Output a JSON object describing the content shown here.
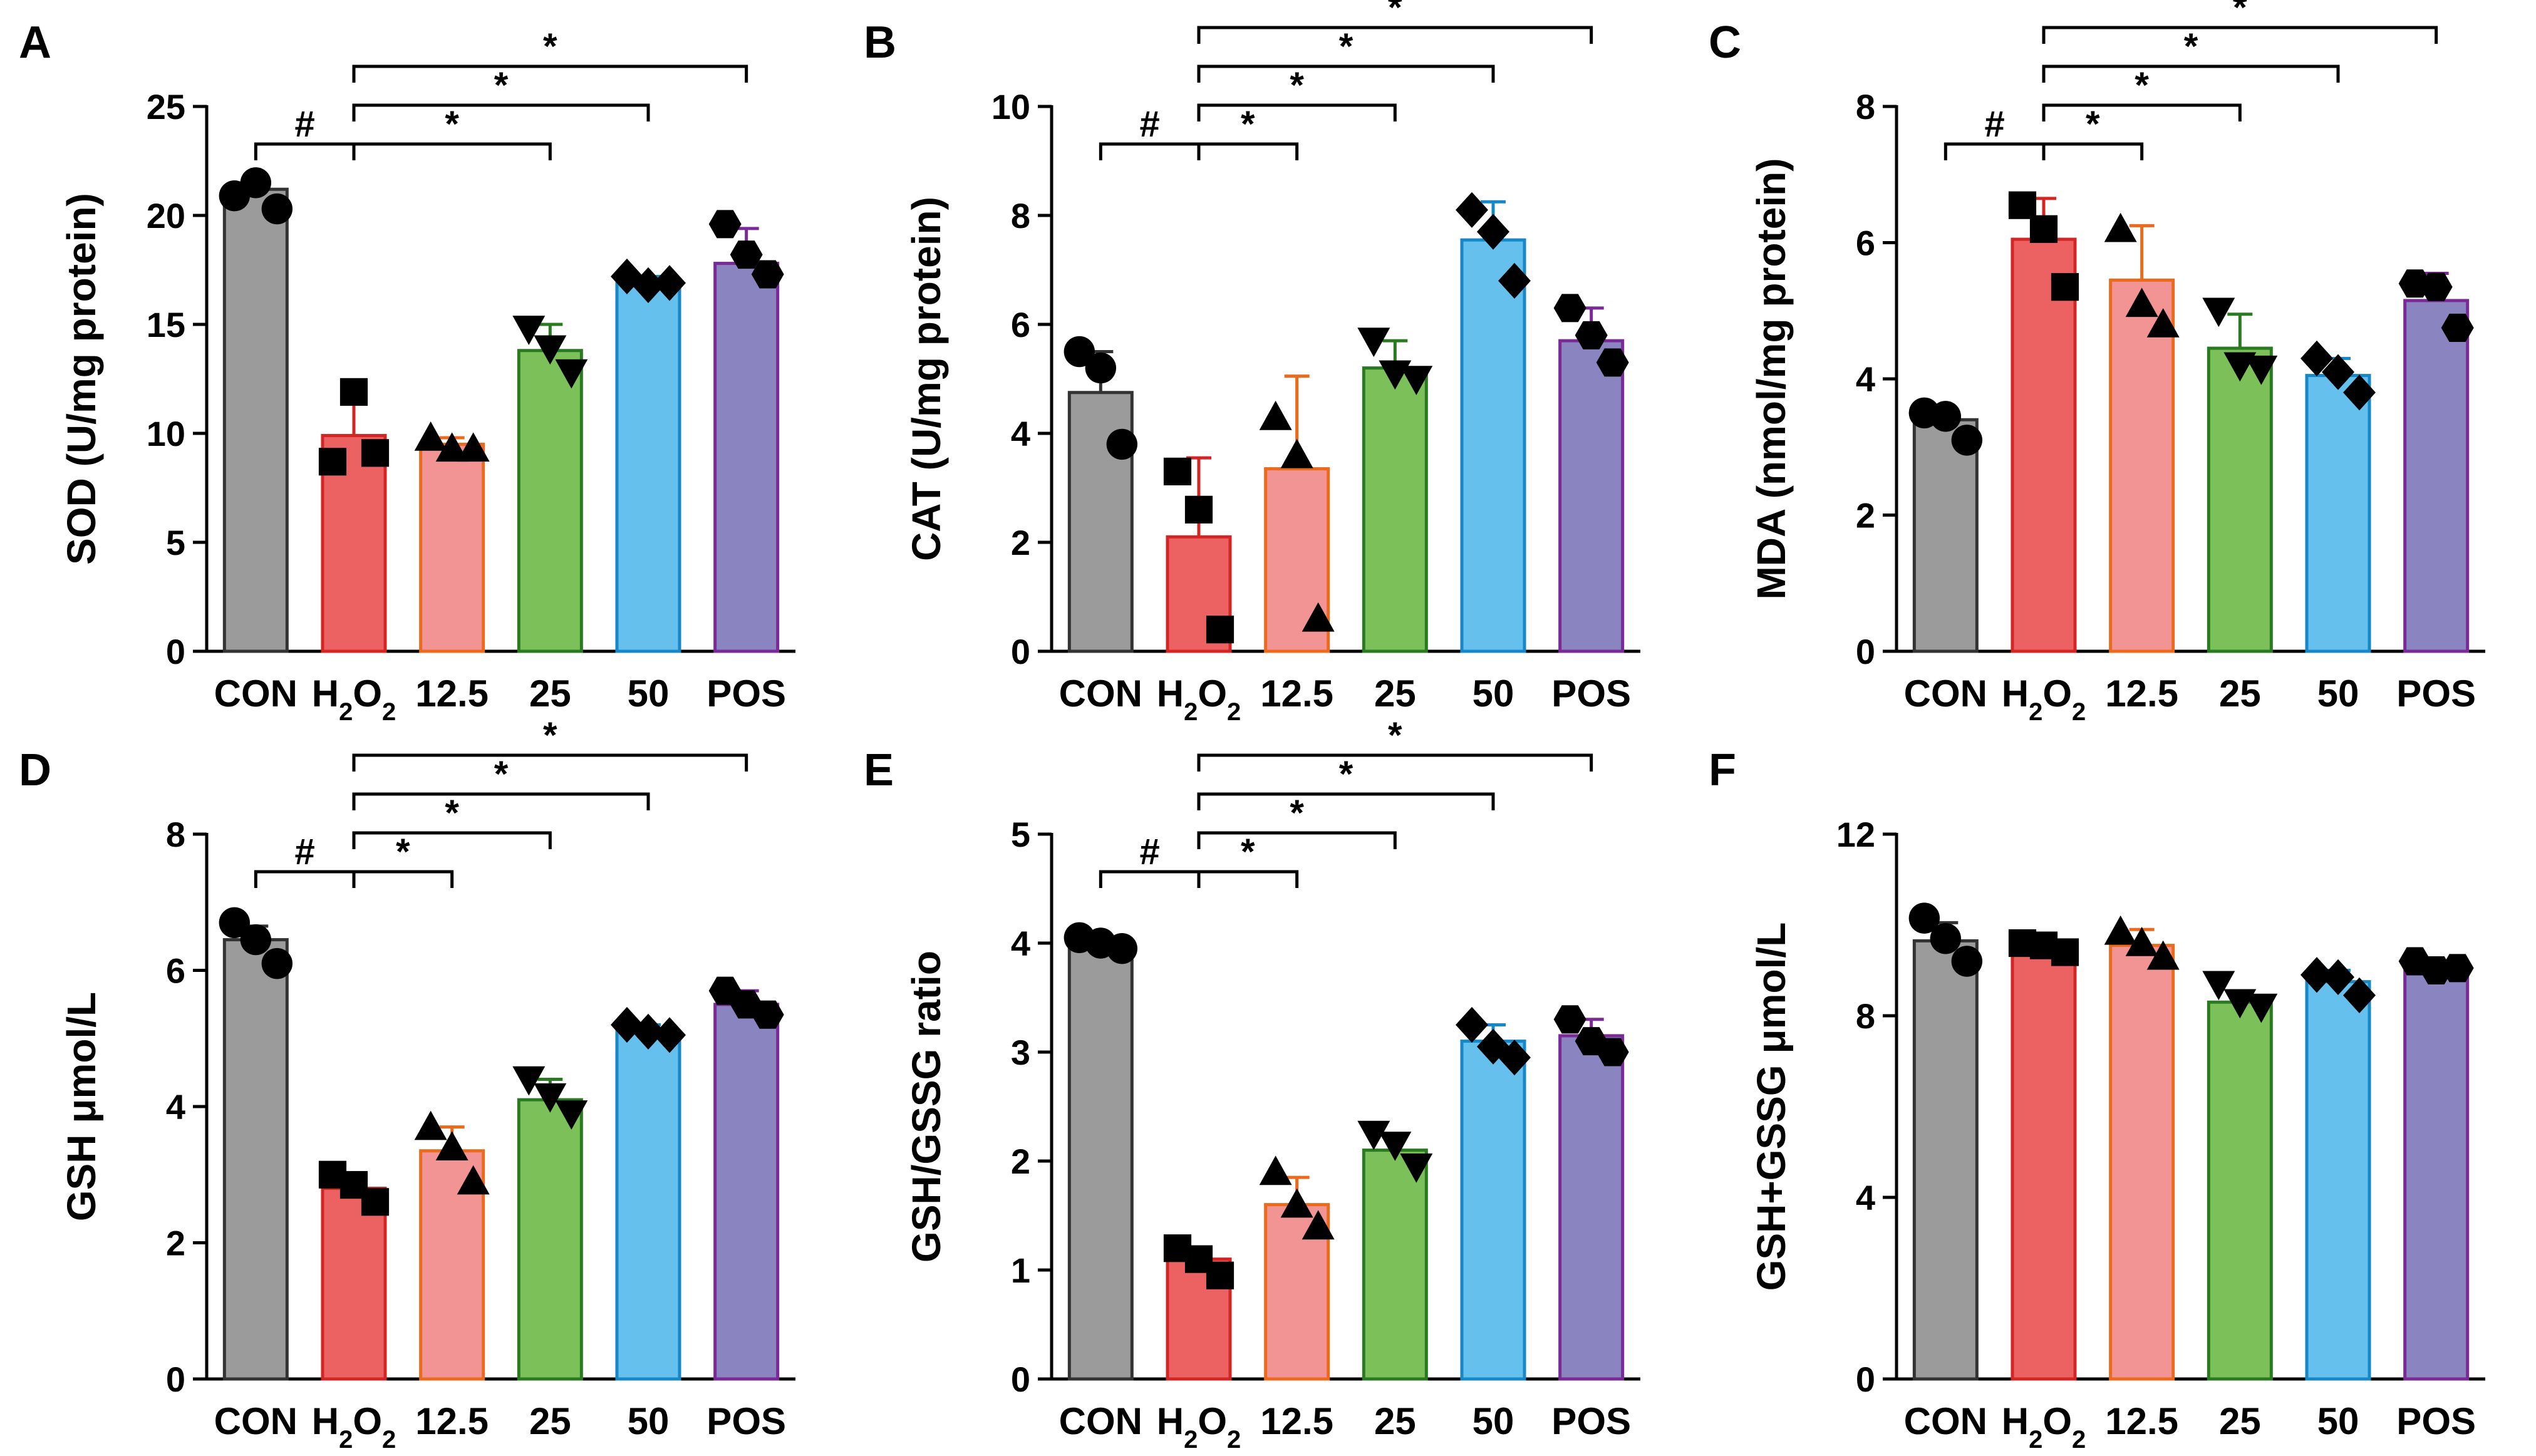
{
  "chart_data": [
    {
      "id": "A",
      "panel_label": "A",
      "type": "bar",
      "ylabel": "SOD (U/mg protein)",
      "ylim": [
        0,
        25
      ],
      "yticks": [
        0,
        5,
        10,
        15,
        20,
        25
      ],
      "categories": [
        "CON",
        "H2O2",
        "12.5",
        "25",
        "50",
        "POS"
      ],
      "values": [
        21.2,
        9.9,
        9.5,
        13.8,
        16.9,
        17.8
      ],
      "errors": [
        0.5,
        1.6,
        0.3,
        1.2,
        0.3,
        1.6
      ],
      "points": [
        [
          20.9,
          21.5,
          20.3
        ],
        [
          8.7,
          11.9,
          9.1
        ],
        [
          9.8,
          9.3,
          9.3
        ],
        [
          14.8,
          13.9,
          12.8
        ],
        [
          17.2,
          16.8,
          16.9
        ],
        [
          19.6,
          18.2,
          17.3
        ]
      ],
      "markers": [
        "circle",
        "square",
        "triangle-up",
        "triangle-down",
        "diamond",
        "hexagon"
      ],
      "comparisons": [
        {
          "from": 0,
          "to": 1,
          "label": "#",
          "level": 1
        },
        {
          "from": 1,
          "to": 3,
          "label": "*",
          "level": 1
        },
        {
          "from": 1,
          "to": 4,
          "label": "*",
          "level": 2
        },
        {
          "from": 1,
          "to": 5,
          "label": "*",
          "level": 3
        }
      ]
    },
    {
      "id": "B",
      "panel_label": "B",
      "type": "bar",
      "ylabel": "CAT (U/mg protein)",
      "ylim": [
        0,
        10
      ],
      "yticks": [
        0,
        2,
        4,
        6,
        8,
        10
      ],
      "categories": [
        "CON",
        "H2O2",
        "12.5",
        "25",
        "50",
        "POS"
      ],
      "values": [
        4.75,
        2.1,
        3.35,
        5.2,
        7.55,
        5.7
      ],
      "errors": [
        0.75,
        1.45,
        1.7,
        0.5,
        0.7,
        0.6
      ],
      "points": [
        [
          5.5,
          5.2,
          3.8
        ],
        [
          3.3,
          2.6,
          0.4
        ],
        [
          4.3,
          3.6,
          0.6
        ],
        [
          5.7,
          5.1,
          5.0
        ],
        [
          8.1,
          7.7,
          6.8
        ],
        [
          6.3,
          5.8,
          5.3
        ]
      ],
      "markers": [
        "circle",
        "square",
        "triangle-up",
        "triangle-down",
        "diamond",
        "hexagon"
      ],
      "comparisons": [
        {
          "from": 0,
          "to": 1,
          "label": "#",
          "level": 1
        },
        {
          "from": 1,
          "to": 2,
          "label": "*",
          "level": 1
        },
        {
          "from": 1,
          "to": 3,
          "label": "*",
          "level": 2
        },
        {
          "from": 1,
          "to": 4,
          "label": "*",
          "level": 3
        },
        {
          "from": 1,
          "to": 5,
          "label": "*",
          "level": 4
        }
      ]
    },
    {
      "id": "C",
      "panel_label": "C",
      "type": "bar",
      "ylabel": "MDA (nmol/mg protein)",
      "ylim": [
        0,
        8
      ],
      "yticks": [
        0,
        2,
        4,
        6,
        8
      ],
      "categories": [
        "CON",
        "H2O2",
        "12.5",
        "25",
        "50",
        "POS"
      ],
      "values": [
        3.4,
        6.05,
        5.45,
        4.45,
        4.05,
        5.15
      ],
      "errors": [
        0.1,
        0.6,
        0.8,
        0.5,
        0.25,
        0.4
      ],
      "points": [
        [
          3.5,
          3.45,
          3.1
        ],
        [
          6.55,
          6.2,
          5.35
        ],
        [
          6.2,
          5.1,
          4.8
        ],
        [
          5.0,
          4.2,
          4.15
        ],
        [
          4.3,
          4.1,
          3.8
        ],
        [
          5.4,
          5.35,
          4.75
        ]
      ],
      "markers": [
        "circle",
        "square",
        "triangle-up",
        "triangle-down",
        "diamond",
        "hexagon"
      ],
      "comparisons": [
        {
          "from": 0,
          "to": 1,
          "label": "#",
          "level": 1
        },
        {
          "from": 1,
          "to": 2,
          "label": "*",
          "level": 1
        },
        {
          "from": 1,
          "to": 3,
          "label": "*",
          "level": 2
        },
        {
          "from": 1,
          "to": 4,
          "label": "*",
          "level": 3
        },
        {
          "from": 1,
          "to": 5,
          "label": "*",
          "level": 4
        }
      ]
    },
    {
      "id": "D",
      "panel_label": "D",
      "type": "bar",
      "ylabel": "GSH μmol/L",
      "ylim": [
        0,
        8
      ],
      "yticks": [
        0,
        2,
        4,
        6,
        8
      ],
      "categories": [
        "CON",
        "H2O2",
        "12.5",
        "25",
        "50",
        "POS"
      ],
      "values": [
        6.45,
        2.8,
        3.35,
        4.1,
        5.1,
        5.5
      ],
      "errors": [
        0.2,
        0.15,
        0.35,
        0.3,
        0.1,
        0.2
      ],
      "points": [
        [
          6.7,
          6.45,
          6.1
        ],
        [
          3.0,
          2.85,
          2.6
        ],
        [
          3.7,
          3.4,
          2.9
        ],
        [
          4.4,
          4.15,
          3.9
        ],
        [
          5.2,
          5.1,
          5.05
        ],
        [
          5.7,
          5.5,
          5.35
        ]
      ],
      "markers": [
        "circle",
        "square",
        "triangle-up",
        "triangle-down",
        "diamond",
        "hexagon"
      ],
      "comparisons": [
        {
          "from": 0,
          "to": 1,
          "label": "#",
          "level": 1
        },
        {
          "from": 1,
          "to": 2,
          "label": "*",
          "level": 1
        },
        {
          "from": 1,
          "to": 3,
          "label": "*",
          "level": 2
        },
        {
          "from": 1,
          "to": 4,
          "label": "*",
          "level": 3
        },
        {
          "from": 1,
          "to": 5,
          "label": "*",
          "level": 4
        }
      ]
    },
    {
      "id": "E",
      "panel_label": "E",
      "type": "bar",
      "ylabel": "GSH/GSSG ratio",
      "ylim": [
        0,
        5
      ],
      "yticks": [
        0,
        1,
        2,
        3,
        4,
        5
      ],
      "categories": [
        "CON",
        "H2O2",
        "12.5",
        "25",
        "50",
        "POS"
      ],
      "values": [
        4.0,
        1.1,
        1.6,
        2.1,
        3.1,
        3.15
      ],
      "errors": [
        0.05,
        0.1,
        0.25,
        0.15,
        0.15,
        0.15
      ],
      "points": [
        [
          4.05,
          4.0,
          3.95
        ],
        [
          1.2,
          1.1,
          0.95
        ],
        [
          1.9,
          1.6,
          1.4
        ],
        [
          2.25,
          2.15,
          1.95
        ],
        [
          3.25,
          3.05,
          2.95
        ],
        [
          3.3,
          3.1,
          3.0
        ]
      ],
      "markers": [
        "circle",
        "square",
        "triangle-up",
        "triangle-down",
        "diamond",
        "hexagon"
      ],
      "comparisons": [
        {
          "from": 0,
          "to": 1,
          "label": "#",
          "level": 1
        },
        {
          "from": 1,
          "to": 2,
          "label": "*",
          "level": 1
        },
        {
          "from": 1,
          "to": 3,
          "label": "*",
          "level": 2
        },
        {
          "from": 1,
          "to": 4,
          "label": "*",
          "level": 3
        },
        {
          "from": 1,
          "to": 5,
          "label": "*",
          "level": 4
        }
      ]
    },
    {
      "id": "F",
      "panel_label": "F",
      "type": "bar",
      "ylabel": "GSH+GSSG μmol/L",
      "ylim": [
        0,
        12
      ],
      "yticks": [
        0,
        4,
        8,
        12
      ],
      "categories": [
        "CON",
        "H2O2",
        "12.5",
        "25",
        "50",
        "POS"
      ],
      "values": [
        9.65,
        9.5,
        9.55,
        8.3,
        8.75,
        9.05
      ],
      "errors": [
        0.4,
        0.1,
        0.35,
        0.25,
        0.25,
        0.1
      ],
      "points": [
        [
          10.15,
          9.7,
          9.2
        ],
        [
          9.6,
          9.55,
          9.4
        ],
        [
          9.85,
          9.6,
          9.3
        ],
        [
          8.7,
          8.3,
          8.2
        ],
        [
          8.9,
          8.85,
          8.45
        ],
        [
          9.2,
          9.0,
          9.05
        ]
      ],
      "markers": [
        "circle",
        "square",
        "triangle-up",
        "triangle-down",
        "diamond",
        "hexagon"
      ],
      "comparisons": []
    }
  ],
  "colors": {
    "fills": [
      "#9b9b9b",
      "#ec6262",
      "#f29494",
      "#7cc05a",
      "#66c0ee",
      "#8a84c0"
    ],
    "strokes": [
      "#333333",
      "#d42525",
      "#ec6a1c",
      "#2a7a22",
      "#1688c8",
      "#7a2a96"
    ]
  }
}
